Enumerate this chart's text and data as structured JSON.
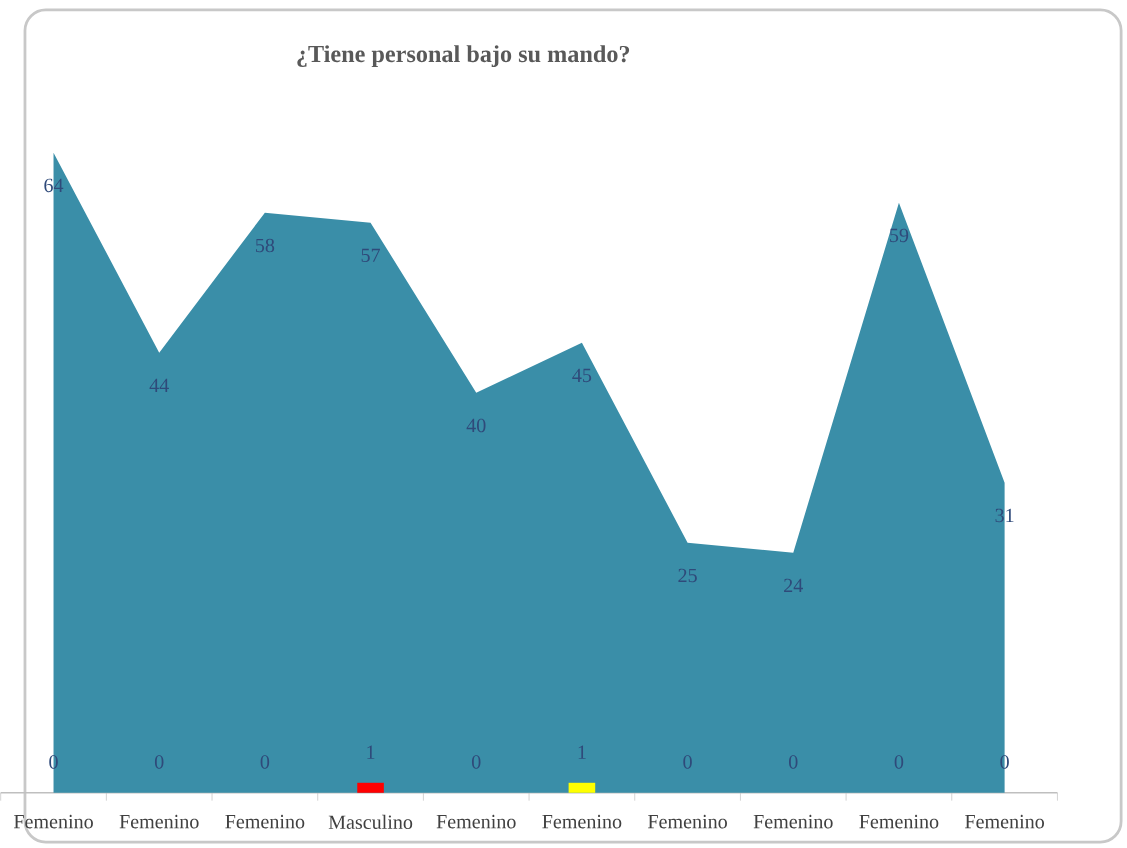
{
  "chart_data": {
    "type": "area",
    "title": "¿Tiene personal bajo su mando?",
    "categories": [
      "Femenino",
      "Femenino",
      "Femenino",
      "Masculino",
      "Femenino",
      "Femenino",
      "Femenino",
      "Femenino",
      "Femenino",
      "Femenino"
    ],
    "series": [
      {
        "color": "#3a8ea8",
        "values": [
          64,
          44,
          58,
          57,
          40,
          45,
          25,
          24,
          59,
          31
        ]
      },
      {
        "type": "bar",
        "colors": [
          null,
          null,
          null,
          "#ff0000",
          null,
          "#ffff00",
          null,
          null,
          null,
          null
        ],
        "values": [
          0,
          0,
          0,
          1,
          0,
          1,
          0,
          0,
          0,
          0
        ]
      }
    ],
    "data_labels": true
  }
}
